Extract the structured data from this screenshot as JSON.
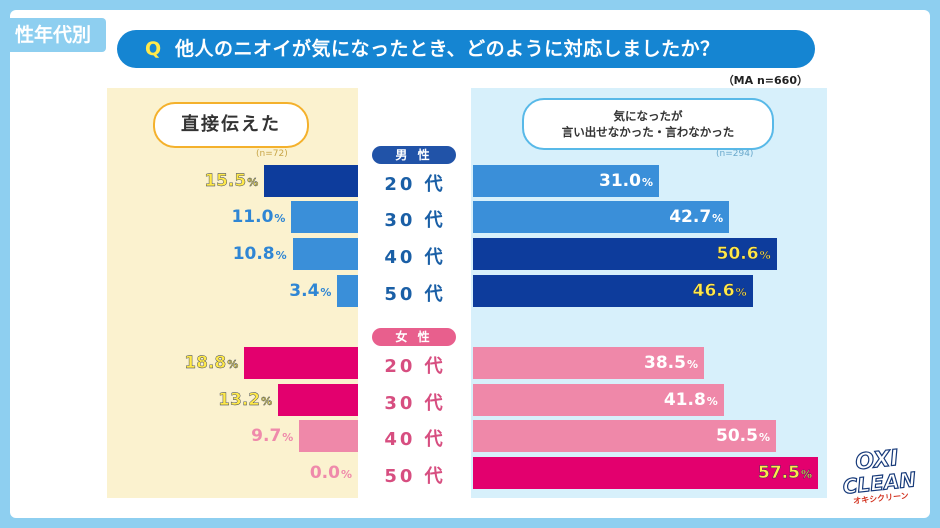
{
  "tag": "性年代別",
  "question": {
    "prefix": "Q",
    "text": "他人のニオイが気になったとき、どのように対応しましたか？"
  },
  "sample_note": "（MA n=660）",
  "left_header": {
    "label": "直接伝えた",
    "n": "(n=72)"
  },
  "right_header": {
    "line1": "気になったが",
    "line2": "言い出せなかった・言わなかった",
    "n": "(n=294)"
  },
  "groups": {
    "male": "男 性",
    "female": "女 性"
  },
  "ages": [
    "20 代",
    "30 代",
    "40 代",
    "50 代"
  ],
  "logo": {
    "line1": "OXI",
    "line2": "CLEAN",
    "line3": "オキシクリーン"
  },
  "colors": {
    "male_dark": "#0d3c9c",
    "male_light": "#3a8fd9",
    "female_dark": "#e3006e",
    "female_light": "#ef88a9",
    "male_text": "#2f86d4",
    "female_text": "#ef8aab",
    "highlight": "#ffe94a"
  },
  "chart_data": {
    "type": "bar",
    "unit": "%",
    "categories": [
      "男性 20代",
      "男性 30代",
      "男性 40代",
      "男性 50代",
      "女性 20代",
      "女性 30代",
      "女性 40代",
      "女性 50代"
    ],
    "series": [
      {
        "name": "直接伝えた",
        "values": [
          15.5,
          11.0,
          10.8,
          3.4,
          18.8,
          13.2,
          9.7,
          0.0
        ]
      },
      {
        "name": "気になったが言い出せなかった・言わなかった",
        "values": [
          31.0,
          42.7,
          50.6,
          46.6,
          38.5,
          41.8,
          50.5,
          57.5
        ]
      }
    ],
    "highlighted": {
      "left": [
        0,
        4,
        5
      ],
      "right": [
        2,
        3,
        7
      ]
    }
  }
}
